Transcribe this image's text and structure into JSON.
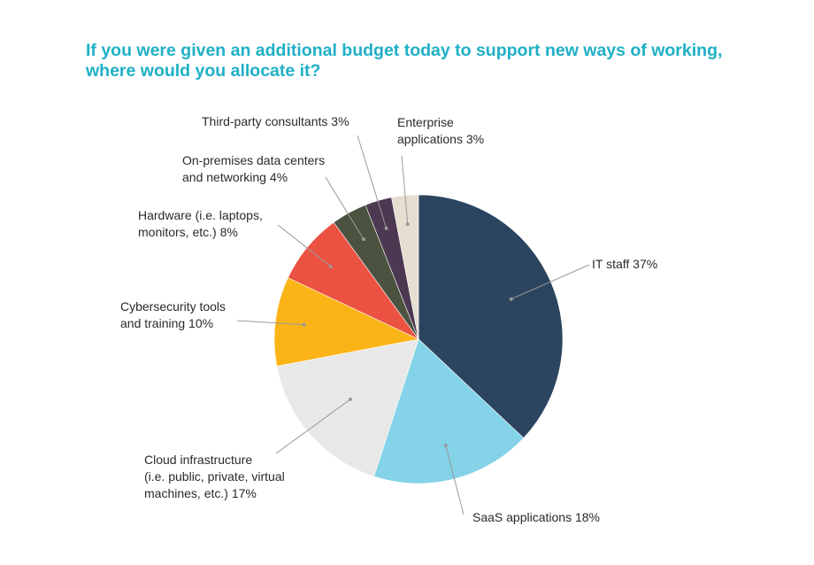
{
  "title_lines": [
    "If you were given an additional budget today to support new ways of working,",
    "where would you allocate it?"
  ],
  "chart_data": {
    "type": "pie",
    "title": "If you were given an additional budget today to support new ways of working, where would you allocate it?",
    "start": "12 o'clock",
    "direction": "clockwise",
    "slices": [
      {
        "key": "it-staff",
        "label_lines": [
          "IT staff 37%"
        ],
        "value": 37,
        "color": "#2b4560"
      },
      {
        "key": "saas-applications",
        "label_lines": [
          "SaaS applications 18%"
        ],
        "value": 18,
        "color": "#84d3e8"
      },
      {
        "key": "cloud-infrastructure",
        "label_lines": [
          "Cloud infrastructure",
          "(i.e. public, private, virtual",
          "machines, etc.)  17%"
        ],
        "value": 17,
        "color": "#e8e8e8"
      },
      {
        "key": "cybersecurity-tools",
        "label_lines": [
          "Cybersecurity tools",
          "and training 10%"
        ],
        "value": 10,
        "color": "#fbb416"
      },
      {
        "key": "hardware",
        "label_lines": [
          "Hardware (i.e. laptops,",
          "monitors, etc.) 8%"
        ],
        "value": 8,
        "color": "#ec5241"
      },
      {
        "key": "on-premises-data-centers",
        "label_lines": [
          "On-premises data centers",
          "and networking 4%"
        ],
        "value": 4,
        "color": "#4b5340"
      },
      {
        "key": "third-party-consultants",
        "label_lines": [
          "Third-party consultants 3%"
        ],
        "value": 3,
        "color": "#4c3850"
      },
      {
        "key": "enterprise-applications",
        "label_lines": [
          "Enterprise",
          "applications 3%"
        ],
        "value": 3,
        "color": "#e6ded0"
      }
    ],
    "leader_line_color": "#9a9a9a"
  }
}
